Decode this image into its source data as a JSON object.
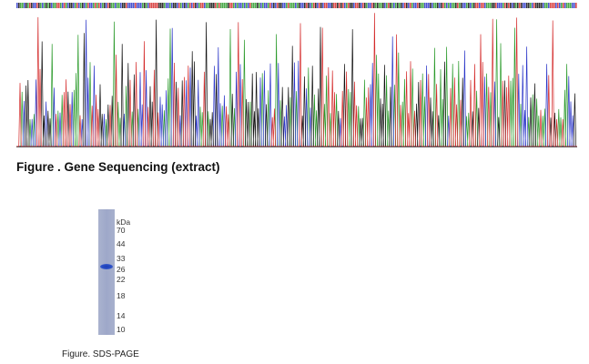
{
  "figure_sequencing": {
    "caption": "Figure . Gene Sequencing (extract)",
    "trace_colors": {
      "A": "#2a9a2a",
      "C": "#2a35c8",
      "G": "#111111",
      "T": "#d42a2a"
    }
  },
  "figure_sds_page": {
    "caption": "Figure. SDS-PAGE",
    "unit": "kDa",
    "markers": [
      "70",
      "44",
      "33",
      "26",
      "22",
      "18",
      "14",
      "10"
    ],
    "band_kda": 26,
    "lane_color": "#a3acca",
    "band_color": "#2a4fc8"
  }
}
